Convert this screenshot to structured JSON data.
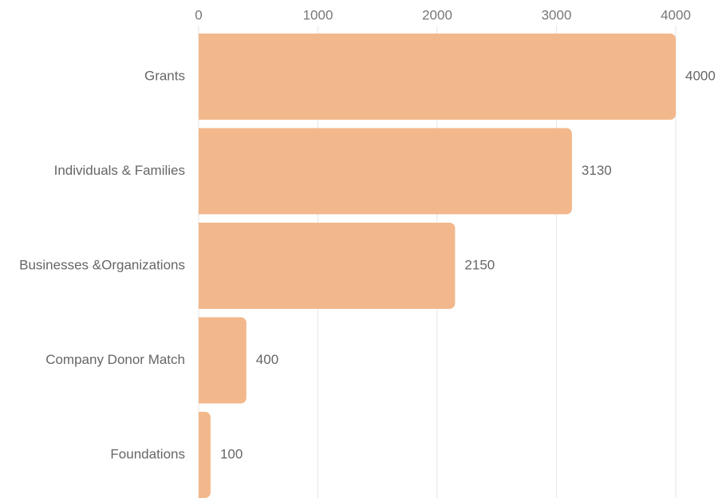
{
  "chart_data": {
    "type": "bar",
    "orientation": "horizontal",
    "categories": [
      "Grants",
      "Individuals & Families",
      "Businesses &Organizations",
      "Company Donor Match",
      "Foundations"
    ],
    "values": [
      4000,
      3130,
      2150,
      400,
      100
    ],
    "color": "#f2b88b",
    "xlim": [
      0,
      4000
    ],
    "xticks": [
      0,
      1000,
      2000,
      3000,
      4000
    ],
    "grid": true
  }
}
